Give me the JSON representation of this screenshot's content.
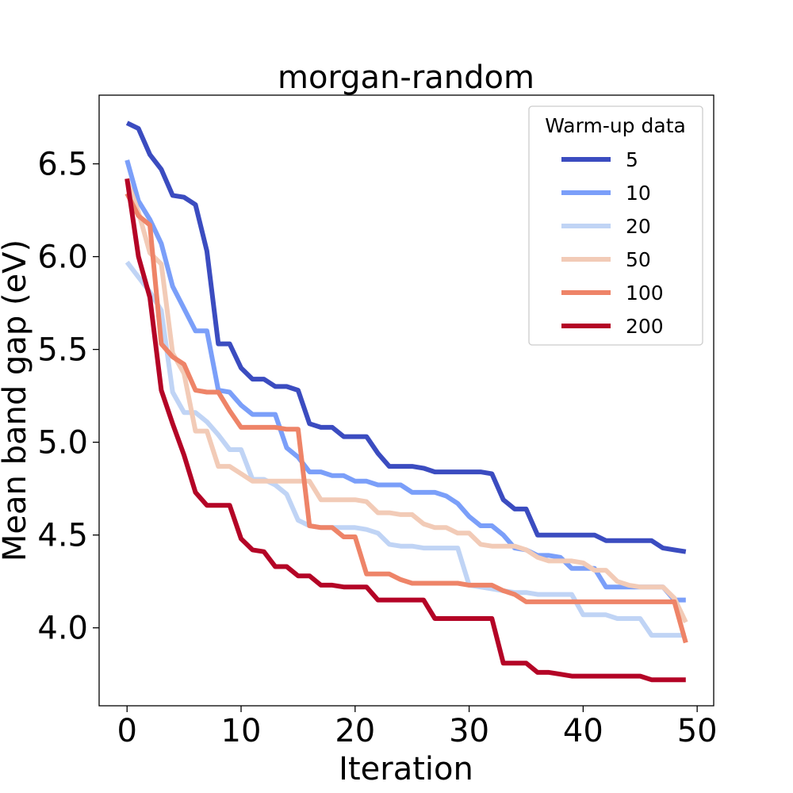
{
  "chart_data": {
    "type": "line",
    "title": "morgan-random",
    "xlabel": "Iteration",
    "ylabel": "Mean band gap (eV)",
    "xlim": [
      -2.45,
      51.45
    ],
    "ylim": [
      3.58,
      6.87
    ],
    "xticks": [
      0,
      10,
      20,
      30,
      40,
      50
    ],
    "yticks": [
      4.0,
      4.5,
      5.0,
      5.5,
      6.0,
      6.5
    ],
    "grid": false,
    "legend": {
      "title": "Warm-up data",
      "placement": "upper right"
    },
    "x": [
      0,
      1,
      2,
      3,
      4,
      5,
      6,
      7,
      8,
      9,
      10,
      11,
      12,
      13,
      14,
      15,
      16,
      17,
      18,
      19,
      20,
      21,
      22,
      23,
      24,
      25,
      26,
      27,
      28,
      29,
      30,
      31,
      32,
      33,
      34,
      35,
      36,
      37,
      38,
      39,
      40,
      41,
      42,
      43,
      44,
      45,
      46,
      47,
      48,
      49
    ],
    "series": [
      {
        "name": "5",
        "color": "#3b4cc0",
        "values": [
          6.72,
          6.69,
          6.55,
          6.47,
          6.33,
          6.32,
          6.28,
          6.03,
          5.53,
          5.53,
          5.4,
          5.34,
          5.34,
          5.3,
          5.3,
          5.28,
          5.1,
          5.08,
          5.08,
          5.03,
          5.03,
          5.03,
          4.94,
          4.87,
          4.87,
          4.87,
          4.86,
          4.84,
          4.84,
          4.84,
          4.84,
          4.84,
          4.83,
          4.69,
          4.64,
          4.64,
          4.5,
          4.5,
          4.5,
          4.5,
          4.5,
          4.5,
          4.47,
          4.47,
          4.47,
          4.47,
          4.47,
          4.43,
          4.42,
          4.41
        ]
      },
      {
        "name": "10",
        "color": "#7b9ff9",
        "values": [
          6.52,
          6.3,
          6.2,
          6.07,
          5.84,
          5.72,
          5.6,
          5.6,
          5.28,
          5.27,
          5.2,
          5.15,
          5.15,
          5.15,
          4.97,
          4.92,
          4.84,
          4.84,
          4.82,
          4.82,
          4.79,
          4.79,
          4.77,
          4.77,
          4.77,
          4.73,
          4.73,
          4.73,
          4.71,
          4.67,
          4.6,
          4.55,
          4.55,
          4.5,
          4.43,
          4.42,
          4.39,
          4.39,
          4.38,
          4.32,
          4.32,
          4.32,
          4.22,
          4.22,
          4.22,
          4.22,
          4.22,
          4.22,
          4.15,
          4.15
        ]
      },
      {
        "name": "20",
        "color": "#c0d4f5",
        "values": [
          5.97,
          5.89,
          5.81,
          5.71,
          5.27,
          5.16,
          5.16,
          5.11,
          5.04,
          4.96,
          4.96,
          4.8,
          4.8,
          4.77,
          4.72,
          4.58,
          4.55,
          4.54,
          4.54,
          4.54,
          4.54,
          4.53,
          4.51,
          4.45,
          4.44,
          4.44,
          4.43,
          4.43,
          4.43,
          4.43,
          4.23,
          4.22,
          4.21,
          4.2,
          4.19,
          4.19,
          4.18,
          4.18,
          4.18,
          4.18,
          4.07,
          4.07,
          4.07,
          4.05,
          4.05,
          4.05,
          3.96,
          3.96,
          3.96,
          3.96
        ]
      },
      {
        "name": "50",
        "color": "#f2cbb7",
        "values": [
          6.41,
          6.24,
          6.02,
          5.96,
          5.48,
          5.37,
          5.06,
          5.06,
          4.87,
          4.87,
          4.83,
          4.79,
          4.79,
          4.79,
          4.79,
          4.79,
          4.79,
          4.69,
          4.69,
          4.69,
          4.69,
          4.68,
          4.62,
          4.62,
          4.61,
          4.61,
          4.56,
          4.54,
          4.54,
          4.51,
          4.51,
          4.45,
          4.44,
          4.44,
          4.44,
          4.42,
          4.38,
          4.36,
          4.36,
          4.36,
          4.35,
          4.31,
          4.31,
          4.25,
          4.23,
          4.22,
          4.22,
          4.22,
          4.16,
          4.03
        ]
      },
      {
        "name": "100",
        "color": "#ee8468",
        "values": [
          6.34,
          6.22,
          6.17,
          5.53,
          5.46,
          5.42,
          5.28,
          5.27,
          5.27,
          5.17,
          5.08,
          5.08,
          5.08,
          5.08,
          5.07,
          5.07,
          4.55,
          4.54,
          4.54,
          4.49,
          4.49,
          4.29,
          4.29,
          4.29,
          4.26,
          4.24,
          4.24,
          4.24,
          4.24,
          4.24,
          4.23,
          4.23,
          4.23,
          4.2,
          4.18,
          4.14,
          4.14,
          4.14,
          4.14,
          4.14,
          4.14,
          4.14,
          4.14,
          4.14,
          4.14,
          4.14,
          4.14,
          4.14,
          4.14,
          3.92
        ]
      },
      {
        "name": "200",
        "color": "#b40426",
        "values": [
          6.42,
          6.0,
          5.78,
          5.28,
          5.1,
          4.93,
          4.73,
          4.66,
          4.66,
          4.66,
          4.48,
          4.42,
          4.41,
          4.33,
          4.33,
          4.28,
          4.28,
          4.23,
          4.23,
          4.22,
          4.22,
          4.22,
          4.15,
          4.15,
          4.15,
          4.15,
          4.15,
          4.05,
          4.05,
          4.05,
          4.05,
          4.05,
          4.05,
          3.81,
          3.81,
          3.81,
          3.76,
          3.76,
          3.75,
          3.74,
          3.74,
          3.74,
          3.74,
          3.74,
          3.74,
          3.74,
          3.72,
          3.72,
          3.72,
          3.72
        ]
      }
    ]
  }
}
